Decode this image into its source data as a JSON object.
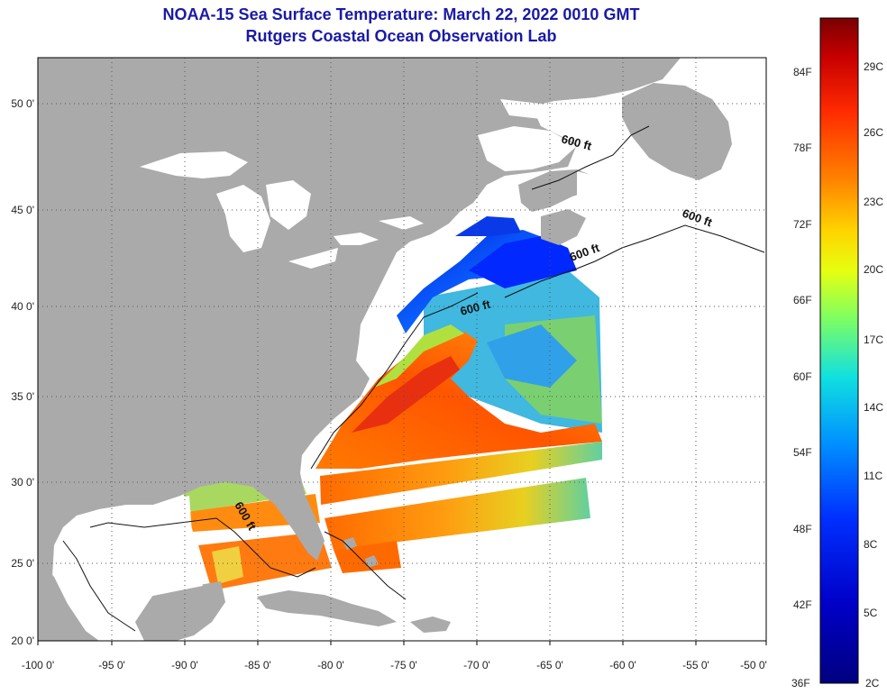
{
  "title": "NOAA-15 Sea Surface Temperature:  March 22, 2022 0010 GMT",
  "subtitle": "Rutgers Coastal Ocean Observation Lab",
  "longitude_ticks": [
    "-100 0'",
    "-95 0'",
    "-90 0'",
    "-85 0'",
    "-80 0'",
    "-75 0'",
    "-70 0'",
    "-65 0'",
    "-60 0'",
    "-55 0'",
    "-50 0'"
  ],
  "latitude_ticks": [
    "50 0'",
    "45 0'",
    "40 0'",
    "35 0'",
    "30 0'",
    "25 0'",
    "20 0'"
  ],
  "colorbar": {
    "fahrenheit_labels": [
      "84F",
      "78F",
      "72F",
      "66F",
      "60F",
      "54F",
      "48F",
      "42F",
      "36F"
    ],
    "celsius_labels": [
      "29C",
      "26C",
      "23C",
      "20C",
      "17C",
      "14C",
      "11C",
      "8C",
      "5C",
      "2C"
    ],
    "colors": [
      "#7a0000",
      "#c80000",
      "#ff2a00",
      "#ff8000",
      "#ffd400",
      "#e6ff10",
      "#80ff60",
      "#10e0e0",
      "#0090ff",
      "#0030ff",
      "#0000c0",
      "#000080"
    ]
  },
  "contour_labels": [
    "600 ft",
    "600 ft",
    "600 ft",
    "600 ft",
    "600 ft"
  ],
  "colors": {
    "land": "#aaaaaa",
    "ocean_nodata": "#ffffff",
    "title": "#1a1aa6",
    "grid": "#555555"
  }
}
